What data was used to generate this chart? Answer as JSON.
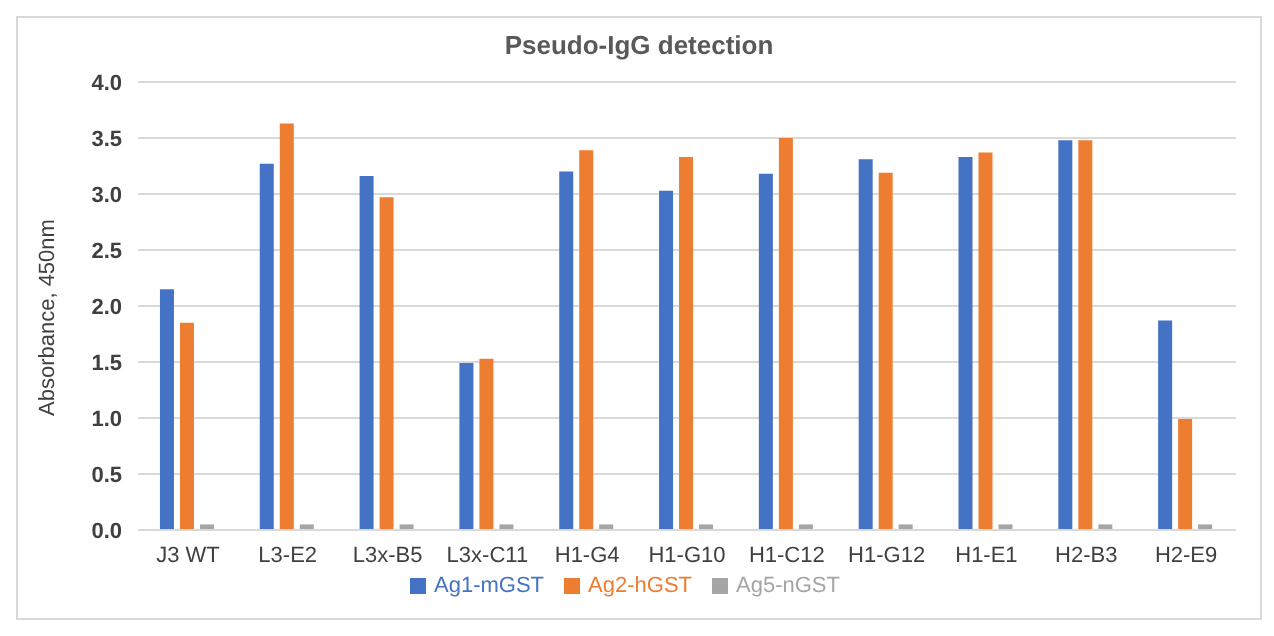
{
  "chart_data": {
    "type": "bar",
    "title": "Pseudo-IgG detection",
    "ylabel": "Absorbance, 450nm",
    "categories": [
      "J3 WT",
      "L3-E2",
      "L3x-B5",
      "L3x-C11",
      "H1-G4",
      "H1-G10",
      "H1-C12",
      "H1-G12",
      "H1-E1",
      "H2-B3",
      "H2-E9"
    ],
    "series": [
      {
        "name": "Ag1-mGST",
        "color": "#4472c4",
        "values": [
          2.15,
          3.27,
          3.16,
          1.49,
          3.2,
          3.03,
          3.18,
          3.31,
          3.33,
          3.48,
          1.87
        ]
      },
      {
        "name": "Ag2-hGST",
        "color": "#ed7d31",
        "values": [
          1.85,
          3.63,
          2.97,
          1.53,
          3.39,
          3.33,
          3.5,
          3.19,
          3.37,
          3.48,
          0.99
        ]
      },
      {
        "name": "Ag5-nGST",
        "color": "#a5a5a5",
        "values": [
          0.05,
          0.05,
          0.05,
          0.05,
          0.05,
          0.05,
          0.05,
          0.05,
          0.05,
          0.05,
          0.05
        ]
      }
    ],
    "ylim": [
      0,
      4
    ],
    "yticks": [
      {
        "value": 0,
        "label": "0.0"
      },
      {
        "value": 0.5,
        "label": "0.5"
      },
      {
        "value": 1,
        "label": "1.0"
      },
      {
        "value": 1.5,
        "label": "1.5"
      },
      {
        "value": 2,
        "label": "2.0"
      },
      {
        "value": 2.5,
        "label": "2.5"
      },
      {
        "value": 3,
        "label": "3.0"
      },
      {
        "value": 3.5,
        "label": "3.5"
      },
      {
        "value": 4,
        "label": "4.0"
      }
    ],
    "grid": "y",
    "legend": "bottom"
  }
}
